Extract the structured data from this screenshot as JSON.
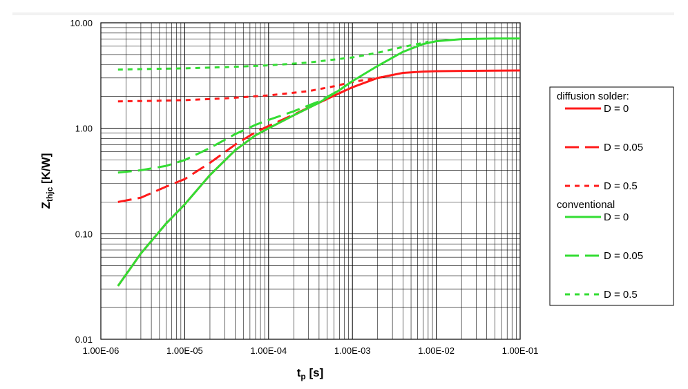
{
  "chart_data": {
    "type": "line",
    "xscale": "log",
    "yscale": "log",
    "xlim": [
      1e-06,
      0.1
    ],
    "ylim": [
      0.01,
      10
    ],
    "grid": true,
    "xlabel_main": "t",
    "xlabel_sub": "p",
    "xlabel_unit": " [s]",
    "ylabel_main": "Z",
    "ylabel_sub": "thjc",
    "ylabel_unit": " [K/W]",
    "xticks": [
      {
        "value": 1e-06,
        "label": "1.00E-06"
      },
      {
        "value": 1e-05,
        "label": "1.00E-05"
      },
      {
        "value": 0.0001,
        "label": "1.00E-04"
      },
      {
        "value": 0.001,
        "label": "1.00E-03"
      },
      {
        "value": 0.01,
        "label": "1.00E-02"
      },
      {
        "value": 0.1,
        "label": "1.00E-01"
      }
    ],
    "yticks": [
      {
        "value": 0.01,
        "label": "0.01"
      },
      {
        "value": 0.1,
        "label": "0.10"
      },
      {
        "value": 1,
        "label": "1.00"
      },
      {
        "value": 10,
        "label": "10.00"
      }
    ],
    "legend_placement": "right",
    "legend_groups": [
      {
        "title": "diffusion solder:",
        "series_index": [
          0,
          1,
          2
        ]
      },
      {
        "title": "conventional",
        "series_index": [
          3,
          4,
          5
        ]
      }
    ],
    "series": [
      {
        "name": "D = 0",
        "color": "#ff1a1a",
        "dash": "solid",
        "x": [
          1.6e-06,
          3e-06,
          6e-06,
          1e-05,
          2e-05,
          4e-05,
          7e-05,
          0.0001,
          0.0002,
          0.0004,
          0.0007,
          0.001,
          0.002,
          0.004,
          0.007,
          0.01,
          0.02,
          0.05,
          0.1
        ],
        "y": [
          0.032,
          0.065,
          0.125,
          0.19,
          0.36,
          0.62,
          0.86,
          1.0,
          1.33,
          1.75,
          2.15,
          2.45,
          3.0,
          3.35,
          3.45,
          3.48,
          3.5,
          3.52,
          3.53
        ]
      },
      {
        "name": "D = 0.05",
        "color": "#ff1a1a",
        "dash": "longdash",
        "x": [
          1.6e-06,
          3e-06,
          6e-06,
          1e-05,
          2e-05,
          4e-05,
          7e-05,
          0.0001,
          0.0002,
          0.0004,
          0.0007,
          0.001
        ],
        "y": [
          0.2,
          0.22,
          0.28,
          0.33,
          0.47,
          0.7,
          0.92,
          1.05,
          1.35,
          1.75,
          2.15,
          2.45
        ]
      },
      {
        "name": "D = 0.5",
        "color": "#ff1a1a",
        "dash": "shortdash",
        "x": [
          1.6e-06,
          4e-06,
          1e-05,
          3e-05,
          0.0001,
          0.0003,
          0.0006,
          0.001,
          0.002,
          0.003
        ],
        "y": [
          1.8,
          1.82,
          1.85,
          1.92,
          2.05,
          2.25,
          2.5,
          2.75,
          3.0,
          3.2
        ]
      },
      {
        "name": "D = 0",
        "color": "#33dd33",
        "dash": "solid",
        "x": [
          1.6e-06,
          3e-06,
          6e-06,
          1e-05,
          2e-05,
          4e-05,
          7e-05,
          0.0001,
          0.0002,
          0.0004,
          0.0007,
          0.001,
          0.002,
          0.004,
          0.007,
          0.01,
          0.02,
          0.05,
          0.1
        ],
        "y": [
          0.032,
          0.065,
          0.125,
          0.19,
          0.36,
          0.62,
          0.86,
          1.0,
          1.33,
          1.75,
          2.3,
          2.8,
          3.9,
          5.3,
          6.3,
          6.7,
          7.0,
          7.1,
          7.1
        ]
      },
      {
        "name": "D = 0.05",
        "color": "#33dd33",
        "dash": "longdash",
        "x": [
          1.6e-06,
          3e-06,
          6e-06,
          1e-05,
          2e-05,
          4e-05,
          7e-05,
          0.0001,
          0.0002,
          0.0004,
          0.0007,
          0.001
        ],
        "y": [
          0.38,
          0.4,
          0.44,
          0.5,
          0.65,
          0.88,
          1.08,
          1.2,
          1.45,
          1.8,
          2.3,
          2.8
        ]
      },
      {
        "name": "D = 0.5",
        "color": "#33dd33",
        "dash": "shortdash",
        "x": [
          1.6e-06,
          4e-06,
          1e-05,
          3e-05,
          0.0001,
          0.0003,
          0.001,
          0.002,
          0.004,
          0.008
        ],
        "y": [
          3.6,
          3.65,
          3.7,
          3.8,
          3.95,
          4.2,
          4.7,
          5.2,
          5.9,
          6.6
        ]
      }
    ]
  }
}
